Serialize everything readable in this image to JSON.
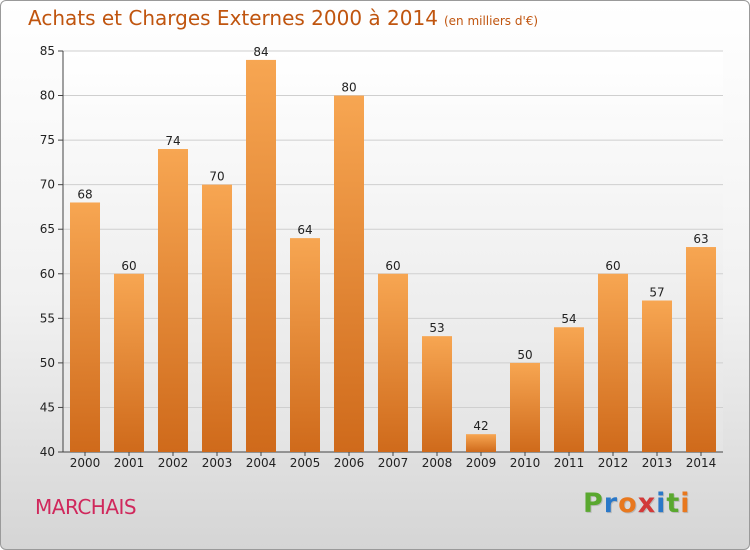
{
  "chart_data": {
    "type": "bar",
    "title": "Achats et Charges Externes 2000 à 2014",
    "subtitle": "(en milliers d'€)",
    "categories": [
      "2000",
      "2001",
      "2002",
      "2003",
      "2004",
      "2005",
      "2006",
      "2007",
      "2008",
      "2009",
      "2010",
      "2011",
      "2012",
      "2013",
      "2014"
    ],
    "values": [
      68,
      60,
      74,
      70,
      84,
      64,
      80,
      60,
      53,
      42,
      50,
      54,
      60,
      57,
      63
    ],
    "ylim": [
      40,
      85
    ],
    "yticks": [
      40,
      45,
      50,
      55,
      60,
      65,
      70,
      75,
      80,
      85
    ],
    "grid": true,
    "bar_color_top": "#f7a652",
    "bar_color_bottom": "#cf6a1b"
  },
  "footer": {
    "commune": "MARCHAIS",
    "brand_letters": [
      "P",
      "r",
      "o",
      "x",
      "i",
      "t",
      "i"
    ],
    "brand_colors": [
      "#5aa82f",
      "#2a78c8",
      "#e8781e",
      "#d23a3a",
      "#2a78c8",
      "#5aa82f",
      "#e8781e"
    ]
  },
  "colors": {
    "title": "#c0550f",
    "commune": "#d0285c"
  }
}
